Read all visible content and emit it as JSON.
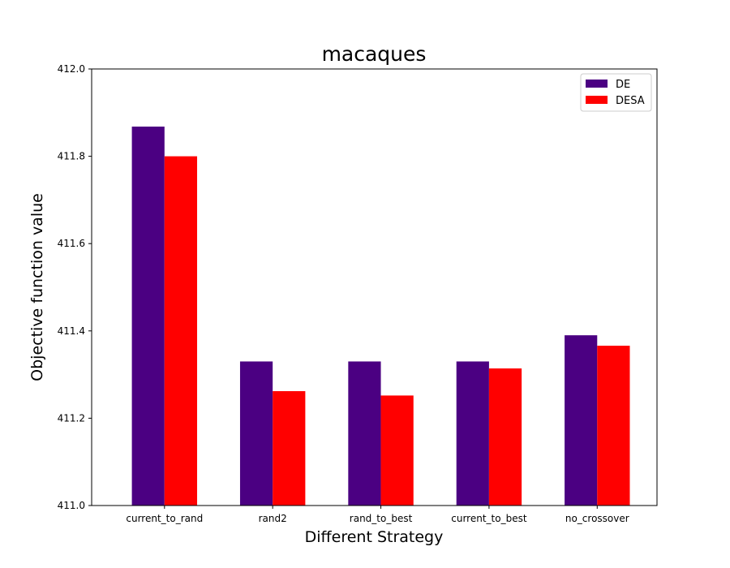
{
  "chart_data": {
    "type": "bar",
    "title": "macaques",
    "xlabel": "Different Strategy",
    "ylabel": "Objective function value",
    "categories": [
      "current_to_rand",
      "rand2",
      "rand_to_best",
      "current_to_best",
      "no_crossover"
    ],
    "series": [
      {
        "name": "DE",
        "color": "#4b0082",
        "values": [
          411.868,
          411.33,
          411.33,
          411.33,
          411.39
        ]
      },
      {
        "name": "DESA",
        "color": "#ff0000",
        "values": [
          411.8,
          411.262,
          411.252,
          411.314,
          411.366
        ]
      }
    ],
    "ylim": [
      411.0,
      412.0
    ],
    "yticks": [
      411.0,
      411.2,
      411.4,
      411.6,
      411.8,
      412.0
    ],
    "ytick_labels": [
      "411.0",
      "411.2",
      "411.4",
      "411.6",
      "411.8",
      "412.0"
    ],
    "grid": false,
    "legend_position": "top-right"
  }
}
